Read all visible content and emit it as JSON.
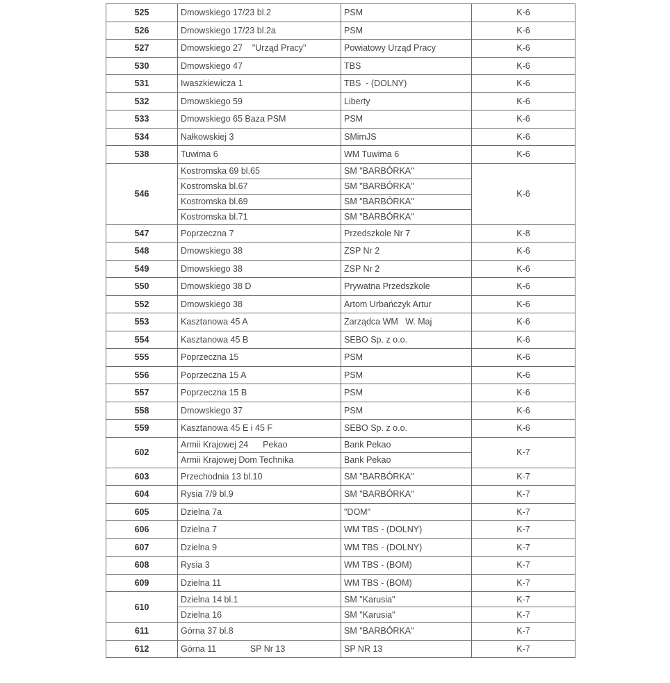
{
  "rows": [
    {
      "no": "525",
      "items": [
        {
          "address": "Dmowskiego 17/23 bl.2",
          "manager": "PSM"
        }
      ],
      "k": "K-6"
    },
    {
      "no": "526",
      "items": [
        {
          "address": "Dmowskiego 17/23 bl.2a",
          "manager": "PSM"
        }
      ],
      "k": "K-6"
    },
    {
      "no": "527",
      "items": [
        {
          "address": "Dmowskiego 27    \"Urząd Pracy\"",
          "manager": "Powiatowy Urząd Pracy"
        }
      ],
      "k": "K-6"
    },
    {
      "no": "530",
      "items": [
        {
          "address": "Dmowskiego 47",
          "manager": "TBS"
        }
      ],
      "k": "K-6"
    },
    {
      "no": "531",
      "items": [
        {
          "address": "Iwaszkiewicza 1",
          "manager": "TBS  - (DOLNY)"
        }
      ],
      "k": "K-6"
    },
    {
      "no": "532",
      "items": [
        {
          "address": "Dmowskiego 59",
          "manager": "Liberty"
        }
      ],
      "k": "K-6"
    },
    {
      "no": "533",
      "items": [
        {
          "address": "Dmowskiego 65 Baza PSM",
          "manager": "PSM"
        }
      ],
      "k": "K-6"
    },
    {
      "no": "534",
      "items": [
        {
          "address": "Nałkowskiej 3",
          "manager": "SMimJS"
        }
      ],
      "k": "K-6"
    },
    {
      "no": "538",
      "items": [
        {
          "address": "Tuwima 6",
          "manager": "WM Tuwima 6"
        }
      ],
      "k": "K-6"
    },
    {
      "no": "546",
      "items": [
        {
          "address": "Kostromska 69 bl.65",
          "manager": "SM \"BARBÓRKA\""
        },
        {
          "address": "Kostromska bl.67",
          "manager": "SM \"BARBÓRKA\""
        },
        {
          "address": "Kostromska bl.69",
          "manager": "SM \"BARBÓRKA\""
        },
        {
          "address": "Kostromska bl.71",
          "manager": "SM \"BARBÓRKA\""
        }
      ],
      "k": "K-6"
    },
    {
      "no": "547",
      "items": [
        {
          "address": "Poprzeczna 7",
          "manager": "Przedszkole Nr 7"
        }
      ],
      "k": "K-8"
    },
    {
      "no": "548",
      "items": [
        {
          "address": "Dmowskiego 38",
          "manager": "ZSP Nr 2"
        }
      ],
      "k": "K-6"
    },
    {
      "no": "549",
      "items": [
        {
          "address": "Dmowskiego 38",
          "manager": "ZSP Nr 2"
        }
      ],
      "k": "K-6"
    },
    {
      "no": "550",
      "items": [
        {
          "address": "Dmowskiego 38 D",
          "manager": "Prywatna Przedszkole"
        }
      ],
      "k": "K-6"
    },
    {
      "no": "552",
      "items": [
        {
          "address": "Dmowskiego 38",
          "manager": "Artom Urbańczyk Artur"
        }
      ],
      "k": "K-6"
    },
    {
      "no": "553",
      "items": [
        {
          "address": "Kasztanowa 45 A",
          "manager": "Zarządca WM   W. Maj"
        }
      ],
      "k": "K-6"
    },
    {
      "no": "554",
      "items": [
        {
          "address": "Kasztanowa 45 B",
          "manager": "SEBO Sp. z o.o."
        }
      ],
      "k": "K-6"
    },
    {
      "no": "555",
      "items": [
        {
          "address": "Poprzeczna 15",
          "manager": "PSM"
        }
      ],
      "k": "K-6"
    },
    {
      "no": "556",
      "items": [
        {
          "address": "Poprzeczna 15 A",
          "manager": "PSM"
        }
      ],
      "k": "K-6"
    },
    {
      "no": "557",
      "items": [
        {
          "address": "Poprzeczna 15 B",
          "manager": "PSM"
        }
      ],
      "k": "K-6"
    },
    {
      "no": "558",
      "items": [
        {
          "address": "Dmowskiego 37",
          "manager": "PSM"
        }
      ],
      "k": "K-6"
    },
    {
      "no": "559",
      "items": [
        {
          "address": "Kasztanowa 45 E i 45 F",
          "manager": "SEBO Sp. z o.o."
        }
      ],
      "k": "K-6"
    },
    {
      "no": "602",
      "items": [
        {
          "address": "Armii Krajowej 24      Pekao",
          "manager": "Bank Pekao"
        },
        {
          "address": "Armii Krajowej Dom Technika",
          "manager": "Bank Pekao"
        }
      ],
      "k": "K-7"
    },
    {
      "no": "603",
      "items": [
        {
          "address": "Przechodnia 13 bl.10",
          "manager": "SM \"BARBÓRKA\""
        }
      ],
      "k": "K-7"
    },
    {
      "no": "604",
      "items": [
        {
          "address": "Rysia 7/9 bl.9",
          "manager": "SM \"BARBÓRKA\""
        }
      ],
      "k": "K-7"
    },
    {
      "no": "605",
      "items": [
        {
          "address": "Dzielna 7a",
          "manager": "\"DOM\""
        }
      ],
      "k": "K-7"
    },
    {
      "no": "606",
      "items": [
        {
          "address": "Dzielna 7",
          "manager": "WM TBS - (DOLNY)"
        }
      ],
      "k": "K-7"
    },
    {
      "no": "607",
      "items": [
        {
          "address": "Dzielna 9",
          "manager": "WM TBS - (DOLNY)"
        }
      ],
      "k": "K-7"
    },
    {
      "no": "608",
      "items": [
        {
          "address": "Rysia 3",
          "manager": "WM TBS - (BOM)"
        }
      ],
      "k": "K-7"
    },
    {
      "no": "609",
      "items": [
        {
          "address": "Dzielna 11",
          "manager": "WM TBS - (BOM)"
        }
      ],
      "k": "K-7"
    },
    {
      "no": "610",
      "items": [
        {
          "address": "Dzielna 14 bl.1",
          "manager": "SM \"Karusia\"",
          "k": "K-7"
        },
        {
          "address": "Dzielna 16",
          "manager": "SM \"Karusia\"",
          "k": "K-7"
        }
      ]
    },
    {
      "no": "611",
      "items": [
        {
          "address": "Górna 37 bl.8",
          "manager": "SM \"BARBÓRKA\""
        }
      ],
      "k": "K-7"
    },
    {
      "no": "612",
      "items": [
        {
          "address": "Górna 11              SP Nr 13",
          "manager": "SP NR 13"
        }
      ],
      "k": "K-7"
    }
  ]
}
